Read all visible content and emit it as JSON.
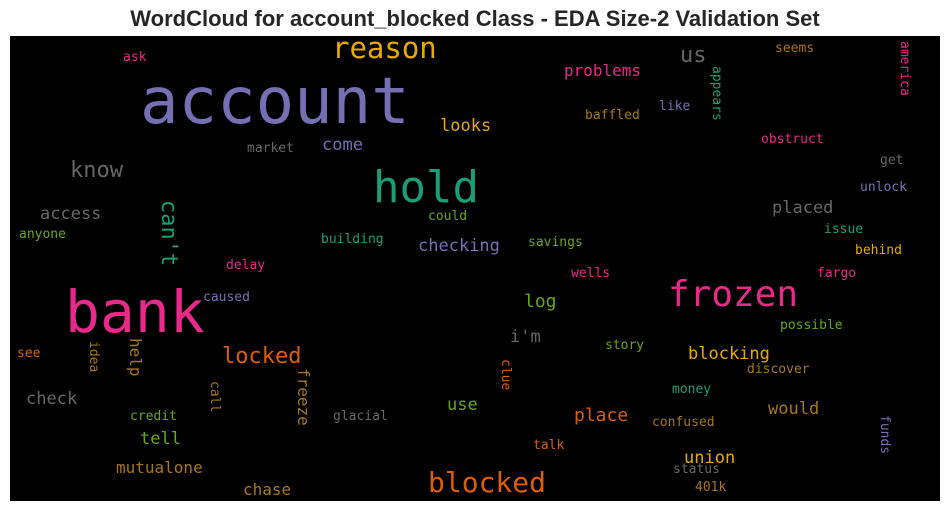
{
  "title": "WordCloud for account_blocked Class - EDA Size-2 Validation Set",
  "chart_data": {
    "type": "wordcloud",
    "colormap": "Dark2",
    "background": "#000000",
    "words": [
      {
        "text": "account",
        "color": "#7570b3"
      },
      {
        "text": "bank",
        "color": "#e7298a"
      },
      {
        "text": "hold",
        "color": "#1b9e77"
      },
      {
        "text": "frozen",
        "color": "#e7298a"
      },
      {
        "text": "reason",
        "color": "#e6ab02"
      },
      {
        "text": "blocked",
        "color": "#d95f02"
      },
      {
        "text": "know",
        "color": "#666666"
      },
      {
        "text": "can't",
        "color": "#1b9e77"
      },
      {
        "text": "locked",
        "color": "#d95f02"
      },
      {
        "text": "us",
        "color": "#666666"
      },
      {
        "text": "access",
        "color": "#666666"
      },
      {
        "text": "checking",
        "color": "#7570b3"
      },
      {
        "text": "problems",
        "color": "#e7298a"
      },
      {
        "text": "looks",
        "color": "#e6ab02"
      },
      {
        "text": "come",
        "color": "#7570b3"
      },
      {
        "text": "log",
        "color": "#66a61e"
      },
      {
        "text": "placed",
        "color": "#666666"
      },
      {
        "text": "i'm",
        "color": "#666666"
      },
      {
        "text": "blocking",
        "color": "#e6ab02"
      },
      {
        "text": "place",
        "color": "#d95f02"
      },
      {
        "text": "would",
        "color": "#a6761d"
      },
      {
        "text": "union",
        "color": "#e6ab02"
      },
      {
        "text": "use",
        "color": "#66a61e"
      },
      {
        "text": "tell",
        "color": "#66a61e"
      },
      {
        "text": "check",
        "color": "#666666"
      },
      {
        "text": "help",
        "color": "#a6761d"
      },
      {
        "text": "freeze",
        "color": "#a6761d"
      },
      {
        "text": "mutualone",
        "color": "#a6761d"
      },
      {
        "text": "chase",
        "color": "#a6761d"
      },
      {
        "text": "savings",
        "color": "#66a61e"
      },
      {
        "text": "building",
        "color": "#1b9e77"
      },
      {
        "text": "could",
        "color": "#66a61e"
      },
      {
        "text": "market",
        "color": "#666666"
      },
      {
        "text": "ask",
        "color": "#e7298a"
      },
      {
        "text": "anyone",
        "color": "#66a61e"
      },
      {
        "text": "delay",
        "color": "#e7298a"
      },
      {
        "text": "caused",
        "color": "#7570b3"
      },
      {
        "text": "see",
        "color": "#d95f02"
      },
      {
        "text": "idea",
        "color": "#a6761d"
      },
      {
        "text": "call",
        "color": "#a6761d"
      },
      {
        "text": "credit",
        "color": "#66a61e"
      },
      {
        "text": "glacial",
        "color": "#666666"
      },
      {
        "text": "talk",
        "color": "#d95f02"
      },
      {
        "text": "clue",
        "color": "#d95f02"
      },
      {
        "text": "story",
        "color": "#66a61e"
      },
      {
        "text": "money",
        "color": "#1b9e77"
      },
      {
        "text": "confused",
        "color": "#a6761d"
      },
      {
        "text": "status",
        "color": "#666666"
      },
      {
        "text": "401k",
        "color": "#a6761d"
      },
      {
        "text": "wells",
        "color": "#e7298a"
      },
      {
        "text": "fargo",
        "color": "#e7298a"
      },
      {
        "text": "possible",
        "color": "#66a61e"
      },
      {
        "text": "discover",
        "color": "#a6761d"
      },
      {
        "text": "behind",
        "color": "#e6ab02"
      },
      {
        "text": "issue",
        "color": "#1b9e77"
      },
      {
        "text": "unlock",
        "color": "#7570b3"
      },
      {
        "text": "get",
        "color": "#666666"
      },
      {
        "text": "obstruct",
        "color": "#e7298a"
      },
      {
        "text": "seems",
        "color": "#a6761d"
      },
      {
        "text": "america",
        "color": "#e7298a"
      },
      {
        "text": "appears",
        "color": "#1b9e77"
      },
      {
        "text": "like",
        "color": "#7570b3"
      },
      {
        "text": "baffled",
        "color": "#a6761d"
      },
      {
        "text": "funds",
        "color": "#7570b3"
      }
    ]
  }
}
